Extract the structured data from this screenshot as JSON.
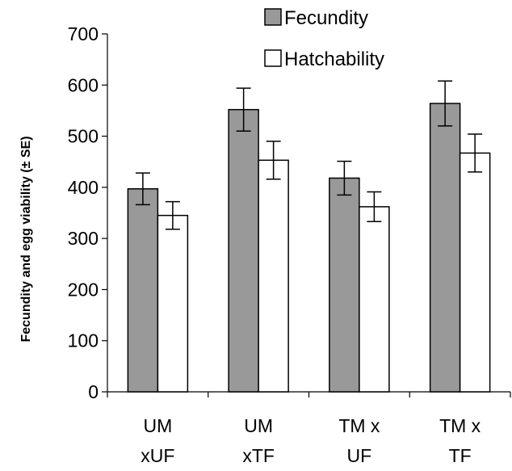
{
  "chart_data": {
    "type": "bar",
    "title": "",
    "xlabel": "",
    "ylabel": "Fecundity  and egg viability (± SE)",
    "ylim": [
      0,
      700
    ],
    "yticks": [
      0,
      100,
      200,
      300,
      400,
      500,
      600,
      700
    ],
    "ytick_labels": [
      "0",
      "100",
      "200",
      "300",
      "400",
      "500",
      "600",
      "700"
    ],
    "grid": false,
    "legend_position": "top",
    "categories": [
      [
        "UM",
        "xUF"
      ],
      [
        "UM",
        "xTF"
      ],
      [
        "TM x",
        "UF"
      ],
      [
        "TM x",
        "TF"
      ]
    ],
    "series": [
      {
        "name": "Fecundity",
        "color": "#999999",
        "values": [
          397,
          552,
          418,
          564
        ],
        "errors": [
          31,
          42,
          33,
          44
        ]
      },
      {
        "name": "Hatchability",
        "color": "#ffffff",
        "values": [
          345,
          453,
          362,
          467
        ],
        "errors": [
          27,
          37,
          29,
          37
        ]
      }
    ]
  }
}
